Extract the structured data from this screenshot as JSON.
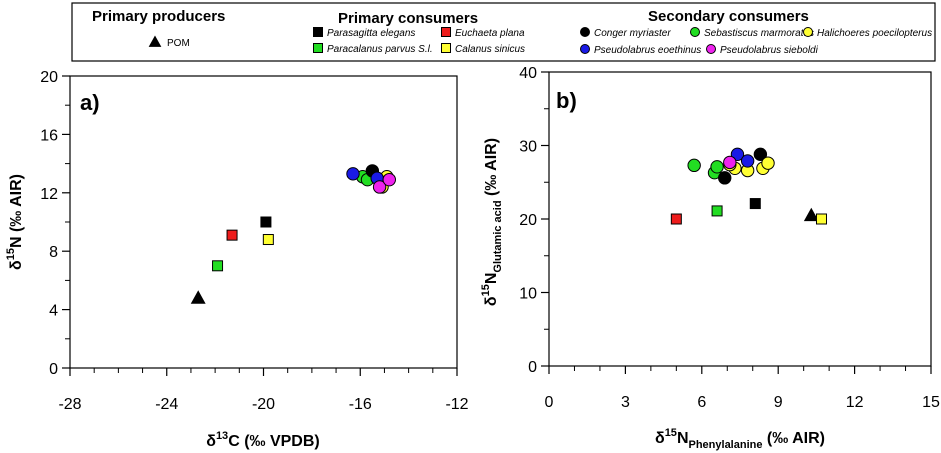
{
  "legend": {
    "group_primary_producers": "Primary producers",
    "group_primary_consumers": "Primary consumers",
    "group_secondary_consumers": "Secondary consumers",
    "items": [
      {
        "label": "POM",
        "marker": "triangle",
        "color": "#000000"
      },
      {
        "label": "Parasagitta elegans",
        "marker": "square",
        "color": "#000000"
      },
      {
        "label": "Euchaeta plana",
        "marker": "square",
        "color": "#ee1c1c"
      },
      {
        "label": "Paracalanus parvus S.l.",
        "marker": "square",
        "color": "#22dd22"
      },
      {
        "label": "Calanus sinicus",
        "marker": "square",
        "color": "#ffff33"
      },
      {
        "label": "Conger myriaster",
        "marker": "circle",
        "color": "#000000"
      },
      {
        "label": "Sebastiscus marmoratus",
        "marker": "circle",
        "color": "#22dd22"
      },
      {
        "label": "Halichoeres poecilopterus",
        "marker": "circle",
        "color": "#ffff33"
      },
      {
        "label": "Pseudolabrus eoethinus",
        "marker": "circle",
        "color": "#1a1ae6"
      },
      {
        "label": "Pseudolabrus sieboldi",
        "marker": "circle",
        "color": "#ee22ee"
      }
    ]
  },
  "chart_data": [
    {
      "type": "scatter",
      "panel_label": "a)",
      "title": "",
      "xlabel": "δ13C (‰ VPDB)",
      "xlabel_parts": {
        "pre": "δ",
        "sup": "13",
        "post": "C (‰ VPDB)"
      },
      "ylabel": "δ15N (‰ AIR)",
      "ylabel_parts": {
        "pre": "δ",
        "sup": "15",
        "post": "N (‰ AIR)"
      },
      "xlim": [
        -28,
        -12
      ],
      "ylim": [
        0,
        20
      ],
      "xticks": [
        -28,
        -24,
        -20,
        -16,
        -12
      ],
      "xtick_labels": [
        "-28",
        "-24",
        "-20",
        "-16",
        "-12"
      ],
      "yticks": [
        0,
        4,
        8,
        12,
        16,
        20
      ],
      "ytick_labels": [
        "0",
        "4",
        "8",
        "12",
        "16",
        "20"
      ],
      "series": [
        {
          "name": "POM",
          "marker": "triangle",
          "color": "#000000",
          "points": [
            [
              -22.7,
              4.8
            ]
          ]
        },
        {
          "name": "Paracalanus parvus S.l.",
          "marker": "square",
          "color": "#22dd22",
          "points": [
            [
              -21.9,
              7.0
            ]
          ]
        },
        {
          "name": "Euchaeta plana",
          "marker": "square",
          "color": "#ee1c1c",
          "points": [
            [
              -21.3,
              9.1
            ]
          ]
        },
        {
          "name": "Calanus sinicus",
          "marker": "square",
          "color": "#ffff33",
          "points": [
            [
              -19.8,
              8.8
            ]
          ]
        },
        {
          "name": "Parasagitta elegans",
          "marker": "square",
          "color": "#000000",
          "points": [
            [
              -19.9,
              10.0
            ]
          ]
        },
        {
          "name": "Halichoeres poecilopterus",
          "marker": "circle",
          "color": "#ffff33",
          "points": [
            [
              -15.1,
              12.4
            ],
            [
              -14.9,
              13.1
            ]
          ]
        },
        {
          "name": "Sebastiscus marmoratus",
          "marker": "circle",
          "color": "#22dd22",
          "points": [
            [
              -15.9,
              13.1
            ],
            [
              -15.7,
              12.9
            ]
          ]
        },
        {
          "name": "Conger myriaster",
          "marker": "circle",
          "color": "#000000",
          "points": [
            [
              -15.5,
              13.5
            ]
          ]
        },
        {
          "name": "Pseudolabrus eoethinus",
          "marker": "circle",
          "color": "#1a1ae6",
          "points": [
            [
              -16.3,
              13.3
            ],
            [
              -15.3,
              13.0
            ]
          ]
        },
        {
          "name": "Pseudolabrus sieboldi",
          "marker": "circle",
          "color": "#ee22ee",
          "points": [
            [
              -15.2,
              12.4
            ],
            [
              -14.8,
              12.9
            ]
          ]
        }
      ]
    },
    {
      "type": "scatter",
      "panel_label": "b)",
      "title": "",
      "xlabel": "δ15N Phenylalanine (‰ AIR)",
      "xlabel_parts": {
        "pre": "δ",
        "sup": "15",
        "mid": "N",
        "sub": "Phenylalanine",
        "post": " (‰ AIR)"
      },
      "ylabel": "δ15N Glutamic acid (‰ AIR)",
      "ylabel_parts": {
        "pre": "δ",
        "sup": "15",
        "mid": "N",
        "sub": "Glutamic acid",
        "post": " (‰ AIR)"
      },
      "xlim": [
        0,
        15
      ],
      "ylim": [
        0,
        40
      ],
      "xticks": [
        0,
        3,
        6,
        9,
        12,
        15
      ],
      "xtick_labels": [
        "0",
        "3",
        "6",
        "9",
        "12",
        "15"
      ],
      "yticks": [
        0,
        10,
        20,
        30,
        40
      ],
      "ytick_labels": [
        "0",
        "10",
        "20",
        "30",
        "40"
      ],
      "series": [
        {
          "name": "POM",
          "marker": "triangle",
          "color": "#000000",
          "points": [
            [
              10.3,
              20.5
            ]
          ]
        },
        {
          "name": "Euchaeta plana",
          "marker": "square",
          "color": "#ee1c1c",
          "points": [
            [
              5.0,
              20.0
            ]
          ]
        },
        {
          "name": "Paracalanus parvus S.l.",
          "marker": "square",
          "color": "#22dd22",
          "points": [
            [
              6.6,
              21.1
            ]
          ]
        },
        {
          "name": "Parasagitta elegans",
          "marker": "square",
          "color": "#000000",
          "points": [
            [
              8.1,
              22.1
            ]
          ]
        },
        {
          "name": "Calanus sinicus",
          "marker": "square",
          "color": "#ffff33",
          "points": [
            [
              10.7,
              20.0
            ]
          ]
        },
        {
          "name": "Sebastiscus marmoratus",
          "marker": "circle",
          "color": "#22dd22",
          "points": [
            [
              5.7,
              27.3
            ],
            [
              6.5,
              26.3
            ],
            [
              6.6,
              27.1
            ]
          ]
        },
        {
          "name": "Conger myriaster",
          "marker": "circle",
          "color": "#000000",
          "points": [
            [
              6.9,
              25.6
            ],
            [
              8.3,
              28.8
            ]
          ]
        },
        {
          "name": "Halichoeres poecilopterus",
          "marker": "circle",
          "color": "#ffff33",
          "points": [
            [
              7.3,
              26.9
            ],
            [
              7.8,
              26.6
            ],
            [
              8.4,
              26.9
            ],
            [
              8.6,
              27.6
            ],
            [
              7.1,
              27.4
            ]
          ]
        },
        {
          "name": "Pseudolabrus eoethinus",
          "marker": "circle",
          "color": "#1a1ae6",
          "points": [
            [
              7.4,
              28.8
            ],
            [
              7.8,
              27.9
            ]
          ]
        },
        {
          "name": "Pseudolabrus sieboldi",
          "marker": "circle",
          "color": "#ee22ee",
          "points": [
            [
              7.1,
              27.7
            ]
          ]
        }
      ]
    }
  ]
}
